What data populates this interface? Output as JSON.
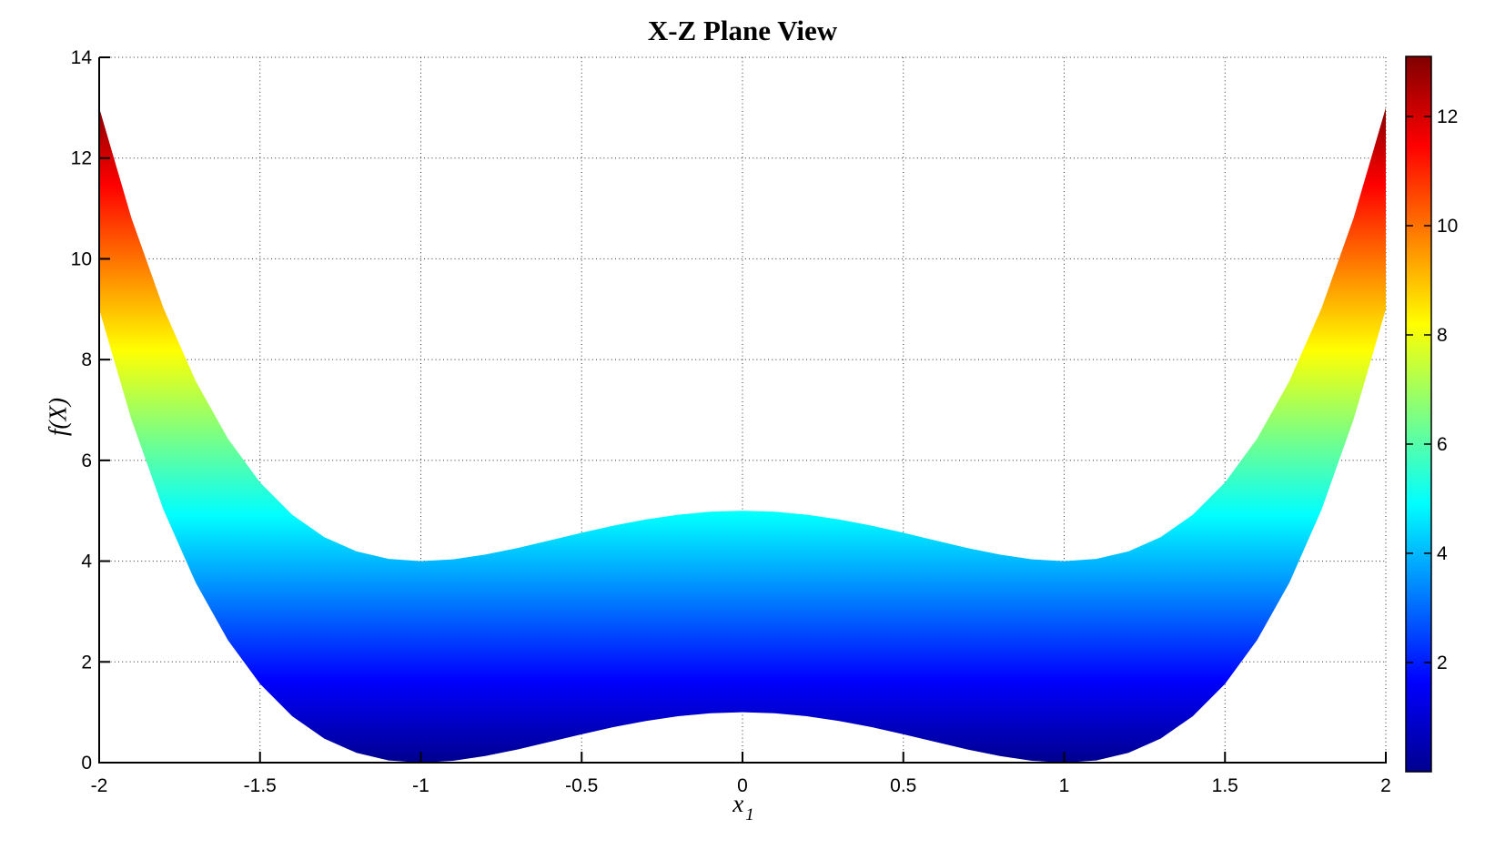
{
  "figure": {
    "background": "#ffffff"
  },
  "chart_data": {
    "type": "area",
    "title": "X-Z Plane View",
    "xlabel_base": "x",
    "xlabel_sub": "1",
    "ylabel": "f(X)",
    "xlim": [
      -2,
      2
    ],
    "ylim": [
      0,
      14
    ],
    "grid": "dotted",
    "legend": "none",
    "x_tick_values": [
      -2,
      -1.5,
      -1,
      -0.5,
      0,
      0.5,
      1,
      1.5,
      2
    ],
    "x_tick_labels": [
      "-2",
      "-1.5",
      "-1",
      "-0.5",
      "0",
      "0.5",
      "1",
      "1.5",
      "2"
    ],
    "y_tick_values": [
      0,
      2,
      4,
      6,
      8,
      10,
      12,
      14
    ],
    "y_tick_labels": [
      "0",
      "2",
      "4",
      "6",
      "8",
      "10",
      "12",
      "14"
    ],
    "series": [
      {
        "name": "surface-band",
        "x": [
          -2,
          -1.9,
          -1.8,
          -1.7,
          -1.6,
          -1.5,
          -1.4,
          -1.3,
          -1.2,
          -1.1,
          -1,
          -0.9,
          -0.8,
          -0.7,
          -0.6,
          -0.5,
          -0.4,
          -0.3,
          -0.2,
          -0.1,
          0,
          0.1,
          0.2,
          0.3,
          0.4,
          0.5,
          0.6,
          0.7,
          0.8,
          0.9,
          1,
          1.1,
          1.2,
          1.3,
          1.4,
          1.5,
          1.6,
          1.7,
          1.8,
          1.9,
          2
        ],
        "z_lower": [
          9,
          6.8121,
          5.0176,
          3.5721,
          2.4336,
          1.5625,
          0.9216,
          0.4761,
          0.1936,
          0.0441,
          0,
          0.0361,
          0.1296,
          0.2601,
          0.4096,
          0.5625,
          0.7056,
          0.8281,
          0.9216,
          0.9801,
          1,
          0.9801,
          0.9216,
          0.8281,
          0.7056,
          0.5625,
          0.4096,
          0.2601,
          0.1296,
          0.0361,
          0,
          0.0441,
          0.1936,
          0.4761,
          0.9216,
          1.5625,
          2.4336,
          3.5721,
          5.0176,
          6.8121,
          9
        ],
        "z_upper": [
          13,
          10.8121,
          9.0176,
          7.5721,
          6.4336,
          5.5625,
          4.9216,
          4.4761,
          4.1936,
          4.0441,
          4,
          4.0361,
          4.1296,
          4.2601,
          4.4096,
          4.5625,
          4.7056,
          4.8281,
          4.9216,
          4.9801,
          5,
          4.9801,
          4.9216,
          4.8281,
          4.7056,
          4.5625,
          4.4096,
          4.2601,
          4.1296,
          4.0361,
          4,
          4.0441,
          4.1936,
          4.4761,
          4.9216,
          5.5625,
          6.4336,
          7.5721,
          9.0176,
          10.8121,
          13
        ]
      }
    ],
    "colormap": {
      "name": "jet",
      "stops": [
        [
          0,
          "#00008f"
        ],
        [
          0.125,
          "#0000ff"
        ],
        [
          0.375,
          "#00ffff"
        ],
        [
          0.625,
          "#ffff00"
        ],
        [
          0.875,
          "#ff0000"
        ],
        [
          1,
          "#800000"
        ]
      ]
    },
    "colorbar": {
      "min": 0,
      "max": 13.1,
      "tick_values": [
        2,
        4,
        6,
        8,
        10,
        12
      ],
      "tick_labels": [
        "2",
        "4",
        "6",
        "8",
        "10",
        "12"
      ]
    }
  }
}
